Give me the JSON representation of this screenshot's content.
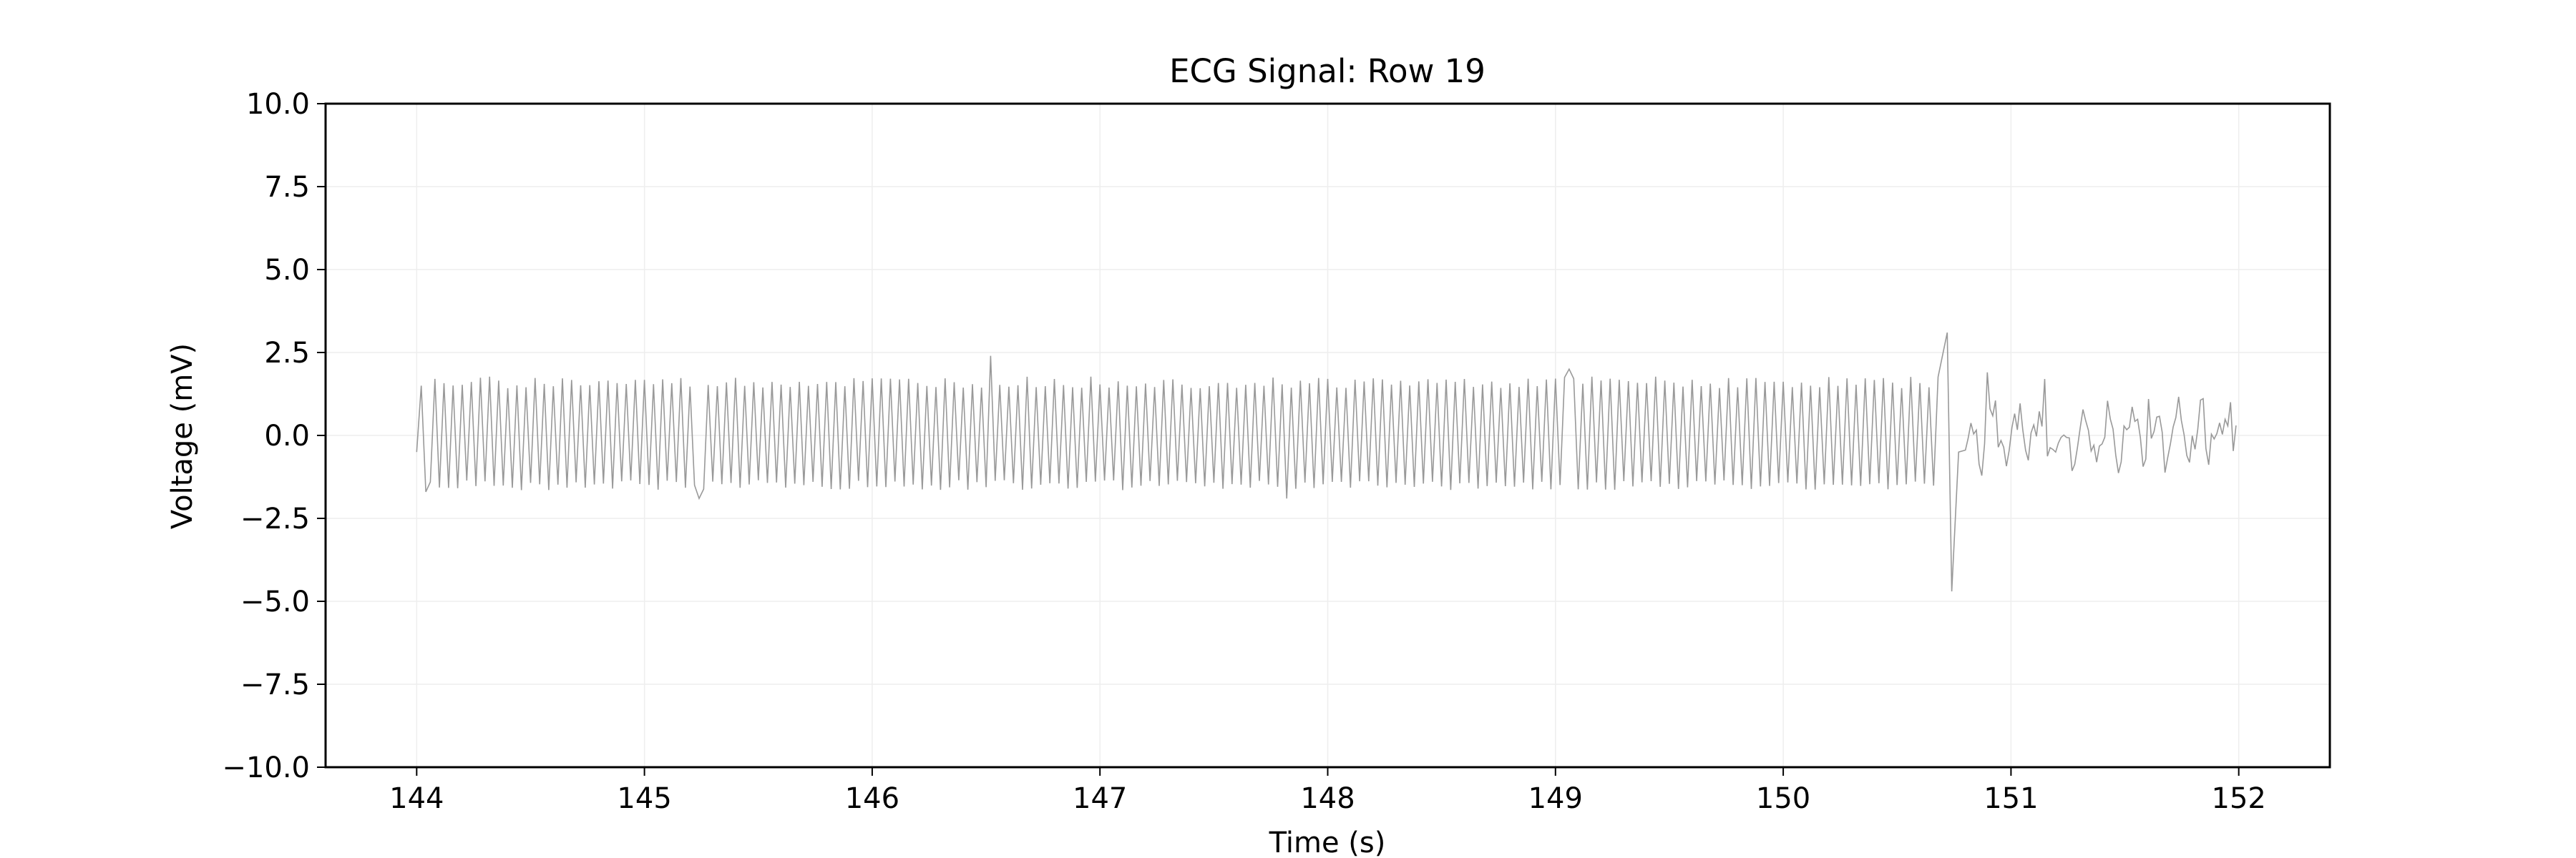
{
  "chart_data": {
    "type": "line",
    "title": "ECG Signal: Row 19",
    "xlabel": "Time (s)",
    "ylabel": "Voltage (mV)",
    "xlim": [
      143.6,
      152.4
    ],
    "ylim": [
      -10.0,
      10.0
    ],
    "grid": true,
    "x_ticks": [
      144,
      145,
      146,
      147,
      148,
      149,
      150,
      151,
      152
    ],
    "x_tick_labels": [
      "144",
      "145",
      "146",
      "147",
      "148",
      "149",
      "150",
      "151",
      "152"
    ],
    "y_ticks": [
      -10.0,
      -7.5,
      -5.0,
      -2.5,
      0.0,
      2.5,
      5.0,
      7.5,
      10.0
    ],
    "y_tick_labels": [
      "−10.0",
      "−7.5",
      "−5.0",
      "−2.5",
      "0.0",
      "2.5",
      "5.0",
      "7.5",
      "10.0"
    ],
    "series": [
      {
        "name": "ECG Row 19",
        "color": "#999999",
        "t_start": 144.0,
        "t_end": 152.0,
        "oscillation_segment": {
          "t_start": 144.0,
          "t_end": 150.7,
          "cycle_period_s": 0.04,
          "peak_mv": 1.6,
          "trough_mv": -1.5
        },
        "key_points": [
          {
            "t": 144.0,
            "v": -0.5
          },
          {
            "t": 144.03,
            "v": 1.5
          },
          {
            "t": 144.05,
            "v": -1.7
          },
          {
            "t": 145.25,
            "v": -1.9
          },
          {
            "t": 146.53,
            "v": 2.4
          },
          {
            "t": 147.83,
            "v": -1.9
          },
          {
            "t": 149.07,
            "v": 2.0
          },
          {
            "t": 150.72,
            "v": 3.1
          },
          {
            "t": 150.74,
            "v": -4.7
          },
          {
            "t": 150.9,
            "v": 1.9
          },
          {
            "t": 151.15,
            "v": 1.7
          },
          {
            "t": 151.6,
            "v": 1.1
          },
          {
            "t": 151.97,
            "v": 1.0
          },
          {
            "t": 152.0,
            "v": 0.3
          }
        ]
      }
    ]
  }
}
